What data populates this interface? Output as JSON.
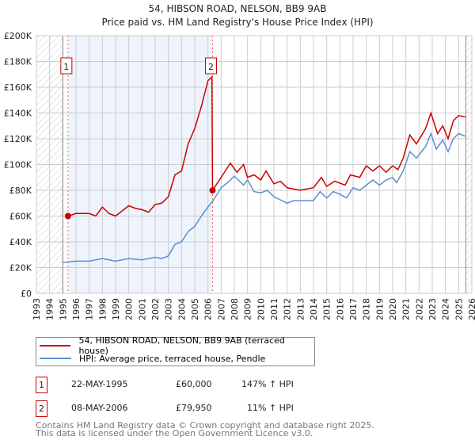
{
  "chart_data": {
    "type": "line",
    "title": "54, HIBSON ROAD, NELSON, BB9 9AB",
    "subtitle": "Price paid vs. HM Land Registry's House Price Index (HPI)",
    "xlim": [
      1993,
      2026
    ],
    "ylim": [
      0,
      200000
    ],
    "x_ticks": [
      "1993",
      "1994",
      "1995",
      "1996",
      "1997",
      "1998",
      "1999",
      "2000",
      "2001",
      "2002",
      "2003",
      "2004",
      "2005",
      "2006",
      "2007",
      "2008",
      "2009",
      "2010",
      "2011",
      "2012",
      "2013",
      "2014",
      "2015",
      "2016",
      "2017",
      "2018",
      "2019",
      "2020",
      "2021",
      "2022",
      "2023",
      "2024",
      "2025",
      "2026"
    ],
    "y_ticks": [
      "£0",
      "£20K",
      "£40K",
      "£60K",
      "£80K",
      "£100K",
      "£120K",
      "£140K",
      "£160K",
      "£180K",
      "£200K"
    ],
    "grid": true,
    "series": [
      {
        "name": "54, HIBSON ROAD, NELSON, BB9 9AB (terraced house)",
        "color": "#cc0000",
        "x": [
          1995.39,
          1996,
          1997,
          1997.5,
          1998,
          1998.5,
          1999,
          1999.5,
          2000,
          2000.5,
          2001,
          2001.5,
          2002,
          2002.5,
          2003,
          2003.5,
          2004,
          2004.5,
          2005,
          2005.5,
          2006,
          2006.3,
          2006.35,
          2007,
          2007.7,
          2008.2,
          2008.7,
          2009,
          2009.5,
          2010,
          2010.4,
          2011,
          2011.5,
          2012,
          2013,
          2014,
          2014.6,
          2015,
          2015.6,
          2016.4,
          2016.8,
          2017.5,
          2018,
          2018.5,
          2019,
          2019.5,
          2020,
          2020.4,
          2020.8,
          2021.3,
          2021.8,
          2022.5,
          2022.9,
          2023.4,
          2023.8,
          2024.2,
          2024.6,
          2025,
          2025.5
        ],
        "y": [
          60000,
          62000,
          62000,
          60000,
          67000,
          62000,
          60000,
          64000,
          68000,
          66000,
          65000,
          63000,
          69000,
          70000,
          75000,
          92000,
          95000,
          116000,
          128000,
          145000,
          165000,
          168000,
          80000,
          90000,
          101000,
          94000,
          100000,
          90000,
          92000,
          88000,
          95000,
          85000,
          87000,
          82000,
          80000,
          82000,
          90000,
          83000,
          87000,
          84000,
          92000,
          90000,
          99000,
          95000,
          99000,
          94000,
          99000,
          96000,
          105000,
          123000,
          116000,
          128000,
          140000,
          124000,
          130000,
          120000,
          134000,
          138000,
          137000
        ]
      },
      {
        "name": "HPI: Average price, terraced house, Pendle",
        "color": "#5b8fd0",
        "x": [
          1995,
          1996,
          1997,
          1998,
          1999,
          2000,
          2001,
          2002,
          2002.5,
          2003,
          2003.5,
          2004,
          2004.5,
          2005,
          2005.5,
          2006,
          2006.4,
          2007,
          2007.5,
          2008,
          2008.7,
          2009,
          2009.5,
          2010,
          2010.5,
          2011,
          2012,
          2012.5,
          2013,
          2014,
          2014.5,
          2015,
          2015.5,
          2016,
          2016.5,
          2017,
          2017.5,
          2018,
          2018.5,
          2019,
          2019.5,
          2020,
          2020.3,
          2020.8,
          2021.3,
          2021.8,
          2022.5,
          2022.9,
          2023.3,
          2023.8,
          2024.2,
          2024.6,
          2025,
          2025.5
        ],
        "y": [
          24000,
          25000,
          25000,
          27000,
          25000,
          27000,
          26000,
          28000,
          27000,
          29000,
          38000,
          40000,
          48000,
          52000,
          60000,
          67000,
          72000,
          82000,
          86000,
          91000,
          84000,
          88000,
          79000,
          78000,
          80000,
          75000,
          70000,
          72000,
          72000,
          72000,
          79000,
          74000,
          79000,
          77000,
          74000,
          82000,
          80000,
          84000,
          88000,
          84000,
          88000,
          90000,
          86000,
          95000,
          110000,
          105000,
          114000,
          124000,
          112000,
          119000,
          110000,
          120000,
          124000,
          122000
        ]
      }
    ],
    "sales": [
      {
        "label": "1",
        "x": 1995.39,
        "y": 60000
      },
      {
        "label": "2",
        "x": 2006.35,
        "y": 79950
      }
    ]
  },
  "legend": {
    "items": [
      "54, HIBSON ROAD, NELSON, BB9 9AB (terraced house)",
      "HPI: Average price, terraced house, Pendle"
    ]
  },
  "transactions": [
    {
      "num": "1",
      "date": "22-MAY-1995",
      "price": "£60,000",
      "hpi": "147% ↑ HPI"
    },
    {
      "num": "2",
      "date": "08-MAY-2006",
      "price": "£79,950",
      "hpi": "11% ↑ HPI"
    }
  ],
  "footer": {
    "line1": "Contains HM Land Registry data © Crown copyright and database right 2025.",
    "line2": "This data is licensed under the Open Government Licence v3.0."
  }
}
